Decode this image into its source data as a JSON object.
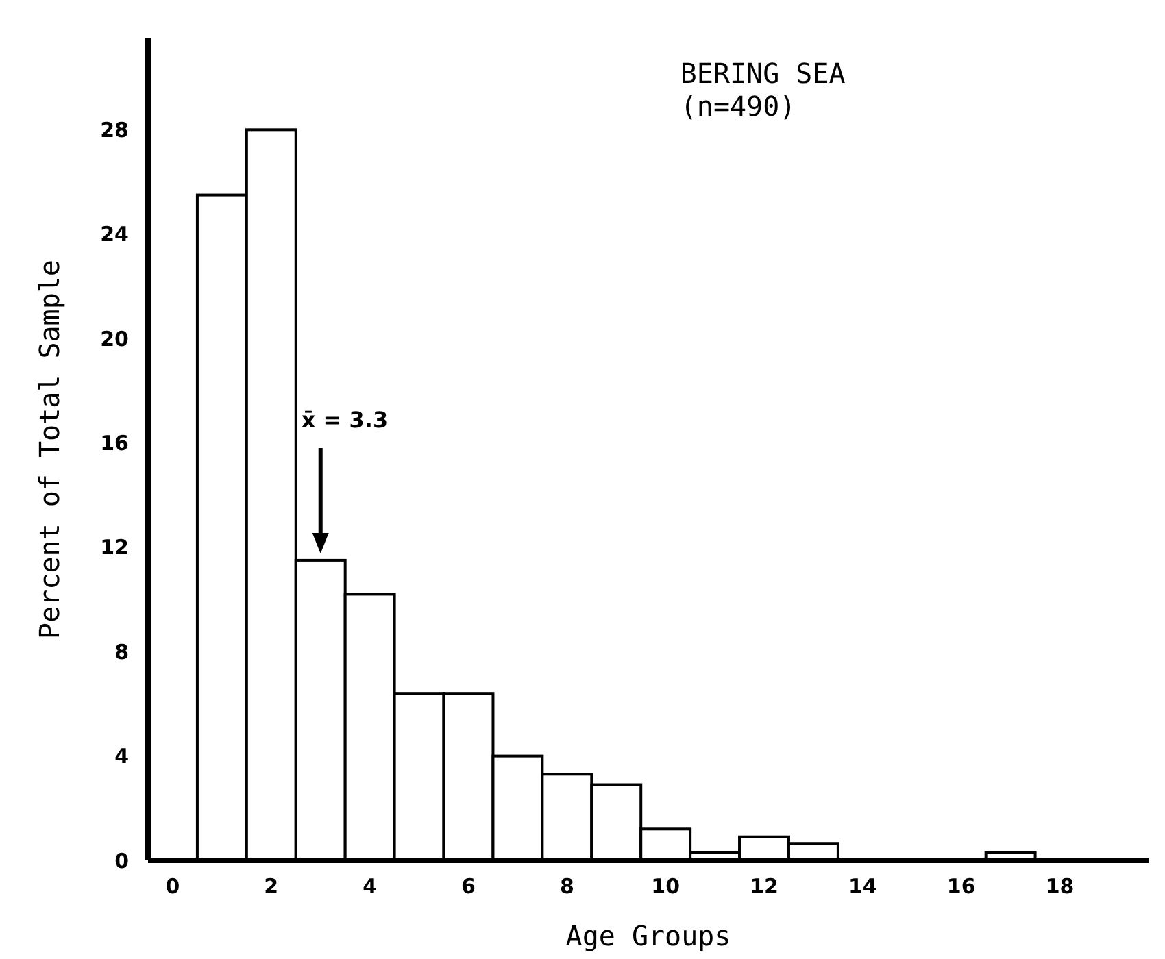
{
  "chart_data": {
    "type": "histogram",
    "xlabel": "Age Groups",
    "ylabel": "Percent of Total Sample",
    "bins": [
      0.5,
      1.5,
      2.5,
      3.5,
      4.5,
      5.5,
      6.5,
      7.5,
      8.5,
      9.5,
      10.5,
      11.5,
      12.5,
      13.5,
      14.5,
      15.5,
      16.5,
      17.5
    ],
    "values": [
      25.5,
      28,
      11.5,
      10.2,
      6.4,
      6.4,
      4,
      3.3,
      2.9,
      1.2,
      0.3,
      0.9,
      0.65,
      0,
      0,
      0,
      0.3
    ],
    "color": "#ffffff",
    "xlim": [
      -0.5,
      19.8
    ],
    "xticks": [
      0,
      2,
      4,
      6,
      8,
      10,
      12,
      14,
      16,
      18
    ],
    "ylim": [
      0,
      31.5
    ],
    "yticks": [
      0,
      4,
      8,
      12,
      16,
      20,
      24,
      28
    ],
    "grid": false,
    "annotations": [
      "BERING SEA\n(n=490)",
      "x̄ = 3.3"
    ]
  }
}
